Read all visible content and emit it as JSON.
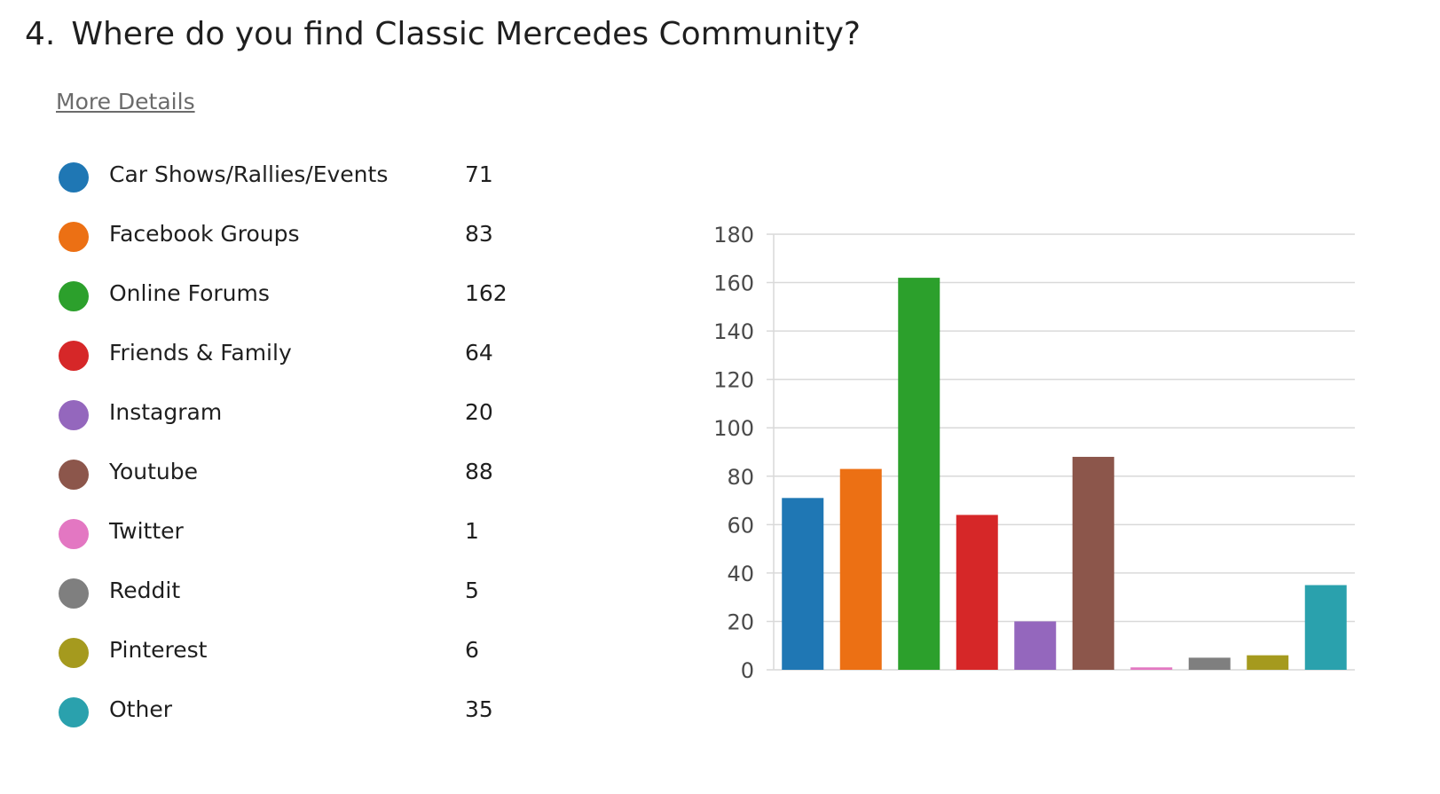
{
  "question": {
    "number": "4.",
    "text": "Where do you find Classic Mercedes Community?"
  },
  "more_details_label": "More Details",
  "chart_data": {
    "type": "bar",
    "categories": [
      "Car Shows/Rallies/Events",
      "Facebook Groups",
      "Online Forums",
      "Friends & Family",
      "Instagram",
      "Youtube",
      "Twitter",
      "Reddit",
      "Pinterest",
      "Other"
    ],
    "values": [
      71,
      83,
      162,
      64,
      20,
      88,
      1,
      5,
      6,
      35
    ],
    "colors": [
      "#1f77b4",
      "#ec7014",
      "#2ca02c",
      "#d62728",
      "#9467bd",
      "#8c564b",
      "#e377c2",
      "#7f7f7f",
      "#a59a1e",
      "#2aa1ad"
    ],
    "ylim": [
      0,
      180
    ],
    "yticks": [
      0,
      20,
      40,
      60,
      80,
      100,
      120,
      140,
      160,
      180
    ],
    "grid": true,
    "legend": "left"
  }
}
